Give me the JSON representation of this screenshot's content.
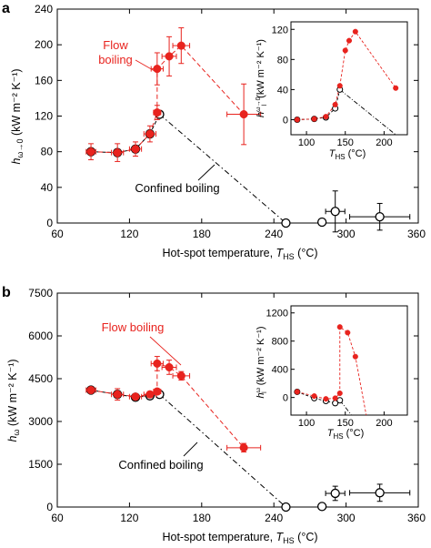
{
  "colors": {
    "flow": "#e8231e",
    "confined": "#000000",
    "flow_err": "#e8231e"
  },
  "chart_data": [
    {
      "panel_label": "a",
      "type": "scatter",
      "xlabel_main": "Hot-spot temperature, ",
      "xlabel_var": "T",
      "xlabel_sub": "HS",
      "xlabel_unit": " (°C)",
      "ylabel_var": "h",
      "ylabel_sub": "ω→0",
      "ylabel_unit": " (kW m⁻² K⁻¹)",
      "xlim": [
        60,
        360
      ],
      "ylim": [
        0,
        240
      ],
      "xticks": [
        60,
        120,
        180,
        240,
        300
      ],
      "xtick_labels": [
        "60",
        "120",
        "180",
        "240",
        "300"
      ],
      "xtick_last_label": "360",
      "yticks": [
        0,
        40,
        80,
        120,
        160,
        200,
        240
      ],
      "ytick_labels": [
        "0",
        "40",
        "80",
        "120",
        "160",
        "200",
        "240"
      ],
      "flow_label_line1": "Flow",
      "flow_label_line2": "boiling",
      "confined_label": "Confined boiling",
      "flow_boiling": [
        {
          "x": 88,
          "y": 80,
          "xerr": 4,
          "yerr": 9
        },
        {
          "x": 110,
          "y": 79,
          "xerr": 5,
          "yerr": 10
        },
        {
          "x": 125,
          "y": 83,
          "xerr": 5,
          "yerr": 8
        },
        {
          "x": 137,
          "y": 100,
          "xerr": 5,
          "yerr": 9
        },
        {
          "x": 143,
          "y": 124,
          "xerr": 3,
          "yerr": 8
        },
        {
          "x": 143,
          "y": 173,
          "xerr": 5,
          "yerr": 18
        },
        {
          "x": 153,
          "y": 187,
          "xerr": 6,
          "yerr": 22
        },
        {
          "x": 163,
          "y": 199,
          "xerr": 7,
          "yerr": 20
        },
        {
          "x": 215,
          "y": 122,
          "xerr": 14,
          "yerr": 34
        }
      ],
      "confined_boiling": [
        {
          "x": 88,
          "y": 80,
          "xerr": 0,
          "yerr": 0
        },
        {
          "x": 110,
          "y": 79,
          "xerr": 0,
          "yerr": 0
        },
        {
          "x": 125,
          "y": 83,
          "xerr": 0,
          "yerr": 0
        },
        {
          "x": 137,
          "y": 100,
          "xerr": 0,
          "yerr": 0
        },
        {
          "x": 145,
          "y": 122,
          "xerr": 0,
          "yerr": 0
        },
        {
          "x": 250,
          "y": 0,
          "xerr": 0,
          "yerr": 0
        },
        {
          "x": 280,
          "y": 1,
          "xerr": 0,
          "yerr": 0
        },
        {
          "x": 291,
          "y": 13,
          "xerr": 8,
          "yerr": 23
        },
        {
          "x": 328,
          "y": 7,
          "xerr": 25,
          "yerr": 15
        }
      ],
      "inset": {
        "xlim": [
          80,
          230
        ],
        "ylim": [
          -20,
          130
        ],
        "xticks": [
          100,
          150,
          200
        ],
        "xtick_labels": [
          "100",
          "150",
          "200"
        ],
        "yticks": [
          0,
          40,
          80,
          120
        ],
        "ytick_labels": [
          "0",
          "40",
          "80",
          "120"
        ],
        "ylabel_var": "h",
        "ylabel_sup": "ω→0",
        "ylabel_sub": "l",
        "ylabel_unit": " (kW m⁻² K⁻¹)",
        "xlabel_var": "T",
        "xlabel_sub": "HS",
        "xlabel_unit": " (°C)",
        "flow": [
          [
            88,
            0
          ],
          [
            110,
            1
          ],
          [
            125,
            4
          ],
          [
            137,
            20
          ],
          [
            143,
            45
          ],
          [
            150,
            92
          ],
          [
            155,
            105
          ],
          [
            163,
            117
          ],
          [
            215,
            42
          ]
        ],
        "confined": [
          [
            88,
            0
          ],
          [
            110,
            1
          ],
          [
            125,
            3
          ],
          [
            137,
            15
          ],
          [
            143,
            40
          ]
        ],
        "confined_extrap": [
          [
            143,
            40
          ],
          [
            215,
            -20
          ]
        ]
      }
    },
    {
      "panel_label": "b",
      "type": "scatter",
      "xlabel_main": "Hot-spot temperature, ",
      "xlabel_var": "T",
      "xlabel_sub": "HS",
      "xlabel_unit": " (°C)",
      "ylabel_var": "h",
      "ylabel_sub": "ω",
      "ylabel_unit": " (kW m⁻² K⁻¹)",
      "xlim": [
        60,
        360
      ],
      "ylim": [
        0,
        7500
      ],
      "xticks": [
        60,
        120,
        180,
        240,
        300
      ],
      "xtick_labels": [
        "60",
        "120",
        "180",
        "240",
        "300"
      ],
      "xtick_last_label": "360",
      "yticks": [
        0,
        1500,
        3000,
        4500,
        6000,
        7500
      ],
      "ytick_labels": [
        "0",
        "1500",
        "3000",
        "4500",
        "6000",
        "7500"
      ],
      "flow_label": "Flow boiling",
      "confined_label": "Confined boiling",
      "flow_boiling": [
        {
          "x": 88,
          "y": 4100,
          "xerr": 4,
          "yerr": 100
        },
        {
          "x": 110,
          "y": 3950,
          "xerr": 5,
          "yerr": 200
        },
        {
          "x": 125,
          "y": 3870,
          "xerr": 5,
          "yerr": 100
        },
        {
          "x": 137,
          "y": 3950,
          "xerr": 5,
          "yerr": 100
        },
        {
          "x": 143,
          "y": 4050,
          "xerr": 3,
          "yerr": 100
        },
        {
          "x": 143,
          "y": 5030,
          "xerr": 5,
          "yerr": 250
        },
        {
          "x": 153,
          "y": 4900,
          "xerr": 6,
          "yerr": 250
        },
        {
          "x": 163,
          "y": 4600,
          "xerr": 7,
          "yerr": 150
        },
        {
          "x": 215,
          "y": 2080,
          "xerr": 14,
          "yerr": 150
        }
      ],
      "confined_boiling": [
        {
          "x": 88,
          "y": 4100,
          "xerr": 0,
          "yerr": 0
        },
        {
          "x": 110,
          "y": 3950,
          "xerr": 0,
          "yerr": 0
        },
        {
          "x": 125,
          "y": 3850,
          "xerr": 0,
          "yerr": 0
        },
        {
          "x": 137,
          "y": 3900,
          "xerr": 0,
          "yerr": 0
        },
        {
          "x": 145,
          "y": 3950,
          "xerr": 0,
          "yerr": 0
        },
        {
          "x": 250,
          "y": 0,
          "xerr": 0,
          "yerr": 0
        },
        {
          "x": 280,
          "y": 20,
          "xerr": 0,
          "yerr": 0
        },
        {
          "x": 291,
          "y": 480,
          "xerr": 8,
          "yerr": 250
        },
        {
          "x": 328,
          "y": 500,
          "xerr": 25,
          "yerr": 300
        }
      ],
      "inset": {
        "xlim": [
          80,
          230
        ],
        "ylim": [
          -250,
          1300
        ],
        "xticks": [
          100,
          150,
          200
        ],
        "xtick_labels": [
          "100",
          "150",
          "200"
        ],
        "yticks": [
          0,
          400,
          800,
          1200
        ],
        "ytick_labels": [
          "0",
          "400",
          "800",
          "1200"
        ],
        "ylabel_var": "h",
        "ylabel_sup": "ω",
        "ylabel_sub": "l",
        "ylabel_unit": " (kW m⁻² K⁻¹)",
        "xlabel_var": "T",
        "xlabel_sub": "HS",
        "xlabel_unit": " (°C)",
        "flow": [
          [
            88,
            80
          ],
          [
            110,
            20
          ],
          [
            125,
            -20
          ],
          [
            137,
            -10
          ],
          [
            143,
            60
          ],
          [
            143,
            1000
          ],
          [
            153,
            920
          ],
          [
            163,
            580
          ],
          [
            177,
            -250
          ]
        ],
        "confined": [
          [
            88,
            80
          ],
          [
            110,
            -10
          ],
          [
            125,
            -50
          ],
          [
            137,
            -80
          ],
          [
            143,
            -40
          ]
        ],
        "confined_extrap": [
          [
            143,
            -40
          ],
          [
            158,
            -250
          ]
        ]
      }
    }
  ]
}
